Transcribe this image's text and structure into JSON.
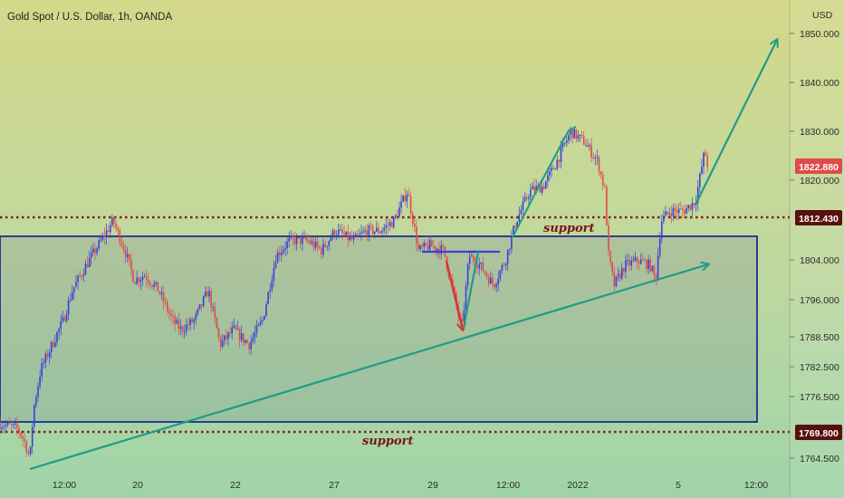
{
  "header": {
    "title": "Gold Spot / U.S. Dollar, 1h, OANDA",
    "currency": "USD"
  },
  "chart_data": {
    "type": "candlestick",
    "symbol": "Gold Spot / U.S. Dollar",
    "timeframe": "1h",
    "source": "OANDA",
    "ylabel": "USD",
    "ylim": [
      1760,
      1853
    ],
    "y_ticks": [
      "1850.000",
      "1840.000",
      "1830.000",
      "1820.000",
      "1804.000",
      "1796.000",
      "1788.500",
      "1782.500",
      "1776.500",
      "1764.500"
    ],
    "x_ticks": [
      "12:00",
      "20",
      "22",
      "27",
      "29",
      "12:00",
      "2022",
      "5",
      "12:00"
    ],
    "last_price": "1822.880",
    "support_levels": [
      {
        "price": "1812.430",
        "label": "support"
      },
      {
        "price": "1769.800",
        "label": "support"
      }
    ],
    "price_path": [
      [
        0,
        1771
      ],
      [
        20,
        1770
      ],
      [
        28,
        1767
      ],
      [
        33,
        1764
      ],
      [
        37,
        1774
      ],
      [
        45,
        1782
      ],
      [
        55,
        1786
      ],
      [
        70,
        1792
      ],
      [
        80,
        1798
      ],
      [
        95,
        1803
      ],
      [
        105,
        1806
      ],
      [
        115,
        1809
      ],
      [
        125,
        1812
      ],
      [
        138,
        1806
      ],
      [
        148,
        1800
      ],
      [
        160,
        1801
      ],
      [
        175,
        1798
      ],
      [
        190,
        1792
      ],
      [
        200,
        1790
      ],
      [
        215,
        1792
      ],
      [
        230,
        1798
      ],
      [
        243,
        1787
      ],
      [
        258,
        1790
      ],
      [
        275,
        1787
      ],
      [
        290,
        1792
      ],
      [
        305,
        1805
      ],
      [
        320,
        1808
      ],
      [
        340,
        1808
      ],
      [
        355,
        1806
      ],
      [
        370,
        1810
      ],
      [
        390,
        1808
      ],
      [
        405,
        1810
      ],
      [
        420,
        1810
      ],
      [
        435,
        1812
      ],
      [
        450,
        1818
      ],
      [
        462,
        1806
      ],
      [
        475,
        1807
      ],
      [
        490,
        1806
      ],
      [
        500,
        1798
      ],
      [
        510,
        1790
      ],
      [
        518,
        1805
      ],
      [
        530,
        1803
      ],
      [
        545,
        1799
      ],
      [
        558,
        1804
      ],
      [
        570,
        1812
      ],
      [
        585,
        1818
      ],
      [
        600,
        1819
      ],
      [
        615,
        1824
      ],
      [
        630,
        1830
      ],
      [
        645,
        1828
      ],
      [
        660,
        1824
      ],
      [
        668,
        1818
      ],
      [
        672,
        1805
      ],
      [
        678,
        1799
      ],
      [
        690,
        1803
      ],
      [
        705,
        1804
      ],
      [
        718,
        1803
      ],
      [
        724,
        1800
      ],
      [
        730,
        1812
      ],
      [
        740,
        1814
      ],
      [
        755,
        1814
      ],
      [
        768,
        1816
      ],
      [
        778,
        1826
      ],
      [
        783,
        1822.88
      ]
    ]
  },
  "colors": {
    "bull": "#3a3fd9",
    "bear": "#e04a4a",
    "support": "#8b1a1a",
    "zone_border": "#101890",
    "trend": "#1f9c88",
    "red_arrow": "#e03030",
    "price_badge": "#e04a4a"
  }
}
